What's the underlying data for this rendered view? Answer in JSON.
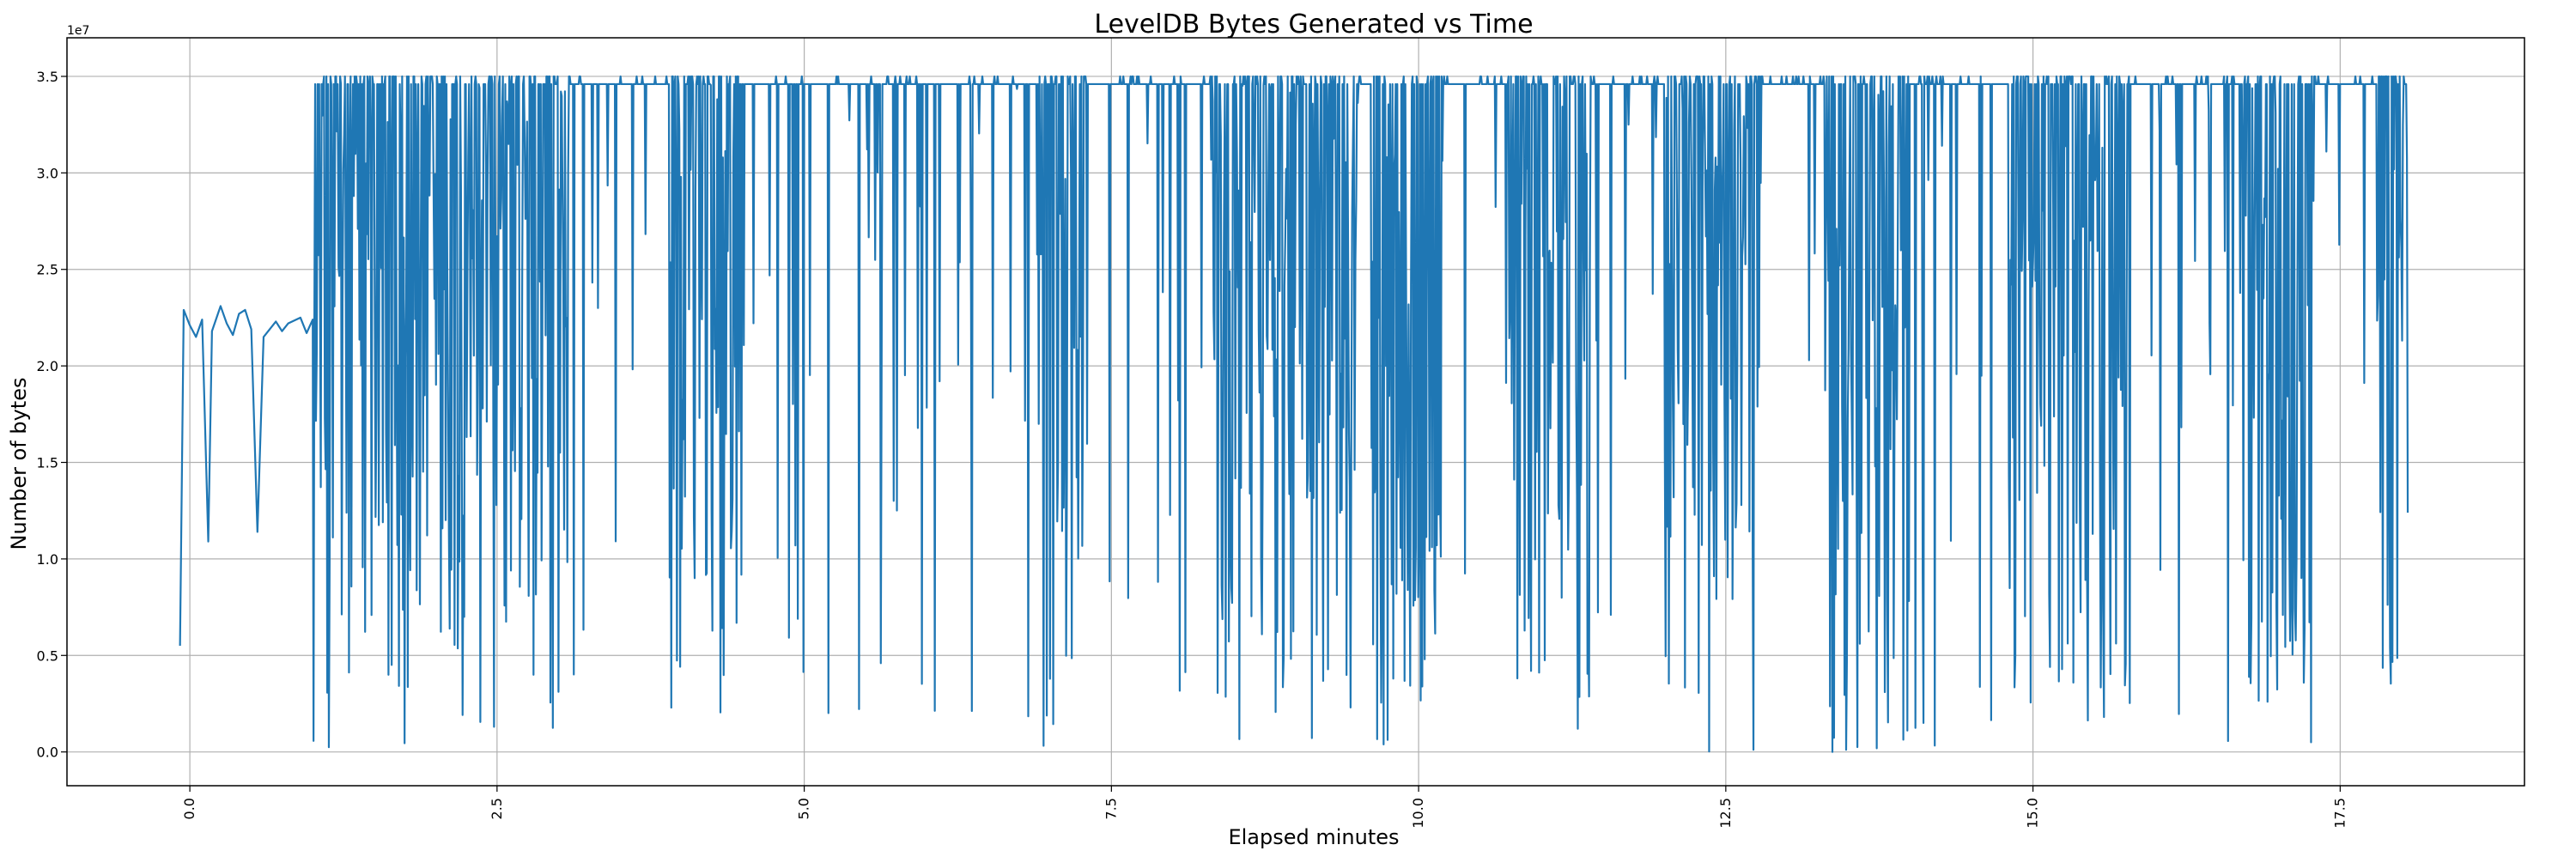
{
  "chart_data": {
    "type": "line",
    "title": "LevelDB Bytes Generated vs Time",
    "xlabel": "Elapsed minutes",
    "ylabel": "Number of bytes",
    "y_scale_label": "1e7",
    "xlim": [
      -1.0,
      19.0
    ],
    "ylim": [
      -1750000,
      37000000
    ],
    "x_ticks": [
      0.0,
      2.5,
      5.0,
      7.5,
      10.0,
      12.5,
      15.0,
      17.5
    ],
    "x_tick_labels": [
      "0.0",
      "2.5",
      "5.0",
      "7.5",
      "10.0",
      "12.5",
      "15.0",
      "17.5"
    ],
    "y_ticks": [
      0,
      5000000,
      10000000,
      15000000,
      20000000,
      25000000,
      30000000,
      35000000
    ],
    "y_tick_labels": [
      "0.0",
      "0.5",
      "1.0",
      "1.5",
      "2.0",
      "2.5",
      "3.0",
      "3.5"
    ],
    "x_tick_rotation_deg": 90,
    "grid": true,
    "line_color": "#1f77b4",
    "series": [
      {
        "x_range": [
          -0.08,
          18.05
        ],
        "sample_count": 2600,
        "initial_points": [
          [
            -0.08,
            5500000
          ],
          [
            -0.05,
            22900000
          ],
          [
            0.0,
            22100000
          ],
          [
            0.05,
            21500000
          ],
          [
            0.1,
            22400000
          ],
          [
            0.15,
            10900000
          ],
          [
            0.18,
            21800000
          ],
          [
            0.25,
            23100000
          ],
          [
            0.3,
            22200000
          ],
          [
            0.35,
            21600000
          ],
          [
            0.4,
            22700000
          ],
          [
            0.45,
            22900000
          ],
          [
            0.5,
            21900000
          ],
          [
            0.55,
            11400000
          ],
          [
            0.6,
            21500000
          ],
          [
            0.7,
            22300000
          ],
          [
            0.75,
            21800000
          ],
          [
            0.8,
            22200000
          ],
          [
            0.9,
            22500000
          ],
          [
            0.95,
            21700000
          ],
          [
            1.0,
            22400000
          ]
        ],
        "plateau_value": 34600000,
        "upper_value": 35000000,
        "dense_regions": [
          [
            1.0,
            3.1
          ],
          [
            3.9,
            4.5
          ],
          [
            6.9,
            7.3
          ],
          [
            8.3,
            9.5
          ],
          [
            9.6,
            10.2
          ],
          [
            10.7,
            11.4
          ],
          [
            12.0,
            12.8
          ],
          [
            13.3,
            14.0
          ],
          [
            14.8,
            15.8
          ],
          [
            16.7,
            17.3
          ],
          [
            17.8,
            18.05
          ]
        ],
        "sparse_regions": [
          [
            3.1,
            3.9
          ],
          [
            4.5,
            6.9
          ],
          [
            7.3,
            8.3
          ],
          [
            9.5,
            9.6
          ],
          [
            10.2,
            10.7
          ],
          [
            11.4,
            12.0
          ],
          [
            12.8,
            13.3
          ],
          [
            14.0,
            14.8
          ],
          [
            15.8,
            16.7
          ],
          [
            17.3,
            17.8
          ]
        ],
        "min_value": 0
      }
    ]
  }
}
